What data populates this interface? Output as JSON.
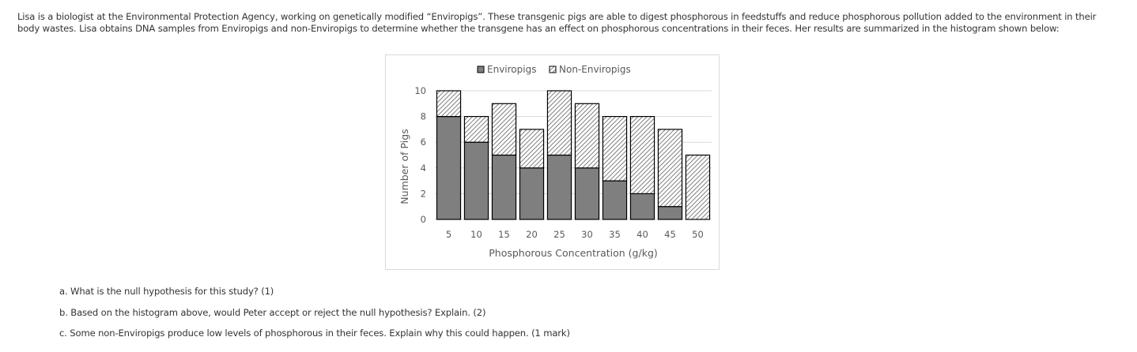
{
  "intro_text": "Lisa is a biologist at the Environmental Protection Agency, working on genetically modified “Enviropigs”. These transgenic pigs are able to digest phosphorous in feedstuffs and reduce phosphorous pollution added to the environment in their body wastes. Lisa obtains DNA samples from Enviropigs and non-Enviropigs to determine whether the transgene has an effect on phosphorous concentrations in their feces. Her results are summarized in the histogram shown below:",
  "questions": {
    "a": "a. What is the null hypothesis for this study? (1)",
    "b": "b. Based on the histogram above, would Peter accept or reject the null hypothesis? Explain. (2)",
    "c": "c. Some non-Enviropigs produce low levels of phosphorous in their feces. Explain why this could happen. (1 mark)"
  },
  "colors": {
    "enviro": "#7f7f7f",
    "hatch": "#7f7f7f",
    "grid": "#d9d9d9",
    "axis_text": "#595959"
  },
  "chart_data": {
    "type": "bar",
    "stacked": true,
    "title": "",
    "xlabel": "Phosphorous Concentration (g/kg)",
    "ylabel": "Number of Pigs",
    "categories": [
      "5",
      "10",
      "15",
      "20",
      "25",
      "30",
      "35",
      "40",
      "45",
      "50"
    ],
    "series": [
      {
        "name": "Enviropigs",
        "values": [
          8,
          6,
          5,
          4,
          5,
          4,
          3,
          2,
          1,
          0
        ]
      },
      {
        "name": "Non-Enviropigs",
        "values": [
          2,
          2,
          4,
          3,
          5,
          5,
          5,
          6,
          6,
          5
        ]
      }
    ],
    "ylim": [
      0,
      10
    ],
    "yticks": [
      "0",
      "2",
      "4",
      "6",
      "8",
      "10"
    ],
    "grid": true,
    "legend": "top"
  }
}
